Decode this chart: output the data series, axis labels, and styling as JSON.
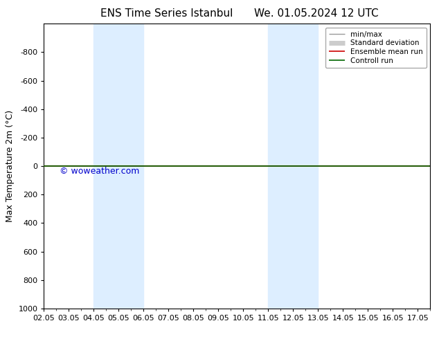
{
  "title_left": "ENS Time Series Istanbul",
  "title_right": "We. 01.05.2024 12 UTC",
  "ylabel": "Max Temperature 2m (°C)",
  "watermark": "© woweather.com",
  "watermark_color": "#0000cc",
  "xlim_start": 2.0,
  "xlim_end": 17.5,
  "ylim_bottom": 1000,
  "ylim_top": -1000,
  "yticks": [
    -800,
    -600,
    -400,
    -200,
    0,
    200,
    400,
    600,
    800,
    1000
  ],
  "xtick_labels": [
    "02.05",
    "03.05",
    "04.05",
    "05.05",
    "06.05",
    "07.05",
    "08.05",
    "09.05",
    "10.05",
    "11.05",
    "12.05",
    "13.05",
    "14.05",
    "15.05",
    "16.05",
    "17.05"
  ],
  "xtick_positions": [
    2.0,
    3.0,
    4.0,
    5.0,
    6.0,
    7.0,
    8.0,
    9.0,
    10.0,
    11.0,
    12.0,
    13.0,
    14.0,
    15.0,
    16.0,
    17.0
  ],
  "shaded_bands": [
    {
      "xmin": 4.0,
      "xmax": 6.0
    },
    {
      "xmin": 11.0,
      "xmax": 13.0
    }
  ],
  "shade_color": "#ddeeff",
  "control_run_y": 0.0,
  "control_run_color": "#006600",
  "ensemble_mean_color": "#cc0000",
  "minmax_color": "#999999",
  "stddev_color": "#cccccc",
  "legend_entries": [
    {
      "label": "min/max",
      "color": "#999999",
      "lw": 1.0
    },
    {
      "label": "Standard deviation",
      "color": "#cccccc",
      "lw": 5
    },
    {
      "label": "Ensemble mean run",
      "color": "#cc0000",
      "lw": 1.2
    },
    {
      "label": "Controll run",
      "color": "#006600",
      "lw": 1.2
    }
  ],
  "background_color": "#ffffff",
  "plot_bg_color": "#ffffff",
  "border_color": "#000000",
  "font_size_title": 11,
  "font_size_ticks": 8,
  "font_size_ylabel": 9,
  "font_size_legend": 7.5,
  "font_size_watermark": 9
}
